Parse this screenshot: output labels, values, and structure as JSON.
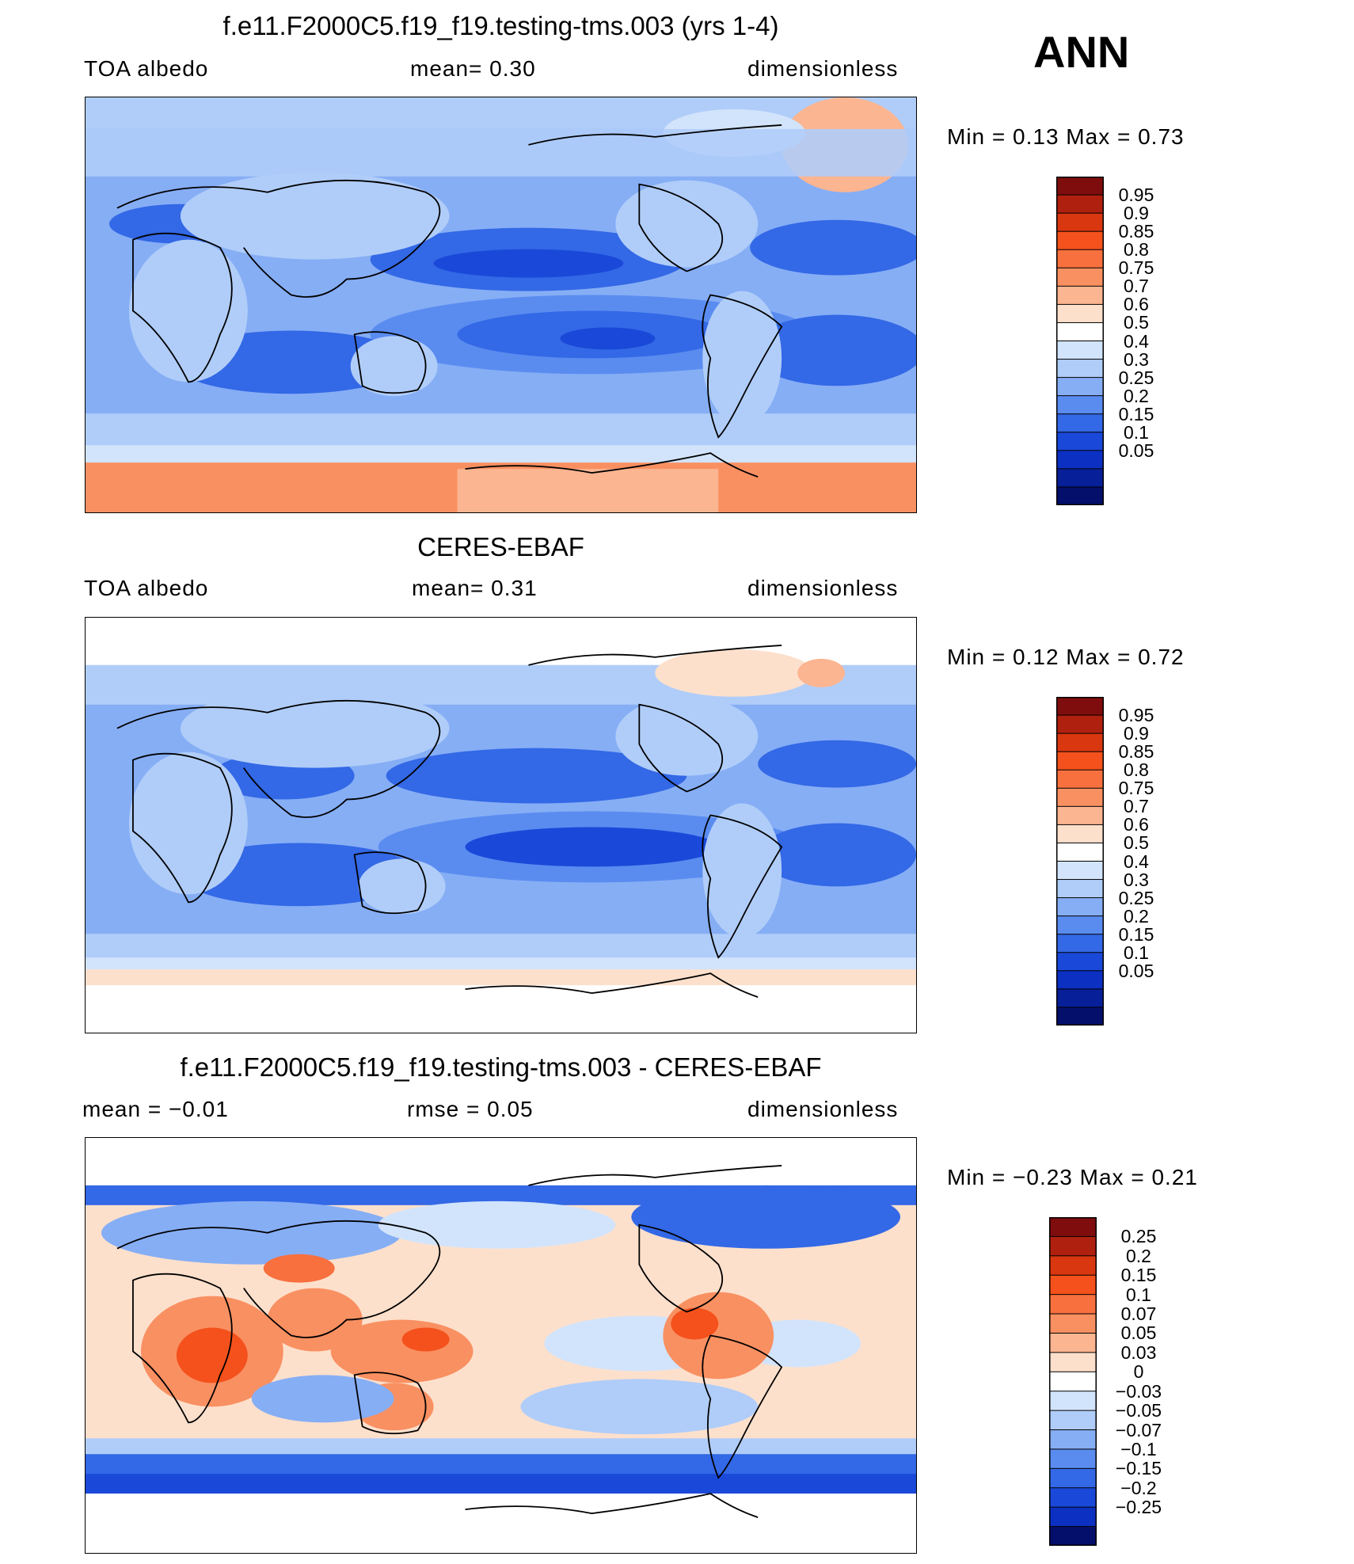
{
  "season": "ANN",
  "panels": [
    {
      "title": "f.e11.F2000C5.f19_f19.testing-tms.003 (yrs 1-4)",
      "left_label": "TOA  albedo",
      "center_label": "mean=     0.30",
      "right_label": "dimensionless",
      "minmax": "Min  =      0.13  Max  =      0.73",
      "colorbar": {
        "labels": [
          "0.95",
          "0.9",
          "0.85",
          "0.8",
          "0.75",
          "0.7",
          "0.6",
          "0.5",
          "0.4",
          "0.3",
          "0.25",
          "0.2",
          "0.15",
          "0.1",
          "0.05"
        ],
        "colors": [
          "#7f0d0d",
          "#b0200e",
          "#d9370f",
          "#f4511c",
          "#f8703e",
          "#f99062",
          "#fbb591",
          "#fde0cc",
          "#ffffff",
          "#d2e4fb",
          "#b0cdf9",
          "#86aef5",
          "#5a8cf0",
          "#3368e6",
          "#1a49d9",
          "#0b30c2",
          "#071f99",
          "#040f6b"
        ],
        "scheme": "abs"
      }
    },
    {
      "title": "CERES-EBAF",
      "left_label": "TOA  albedo",
      "center_label": "mean=     0.31",
      "right_label": "dimensionless",
      "minmax": "Min  =      0.12  Max  =      0.72",
      "colorbar": {
        "labels": [
          "0.95",
          "0.9",
          "0.85",
          "0.8",
          "0.75",
          "0.7",
          "0.6",
          "0.5",
          "0.4",
          "0.3",
          "0.25",
          "0.2",
          "0.15",
          "0.1",
          "0.05"
        ],
        "colors": [
          "#7f0d0d",
          "#b0200e",
          "#d9370f",
          "#f4511c",
          "#f8703e",
          "#f99062",
          "#fbb591",
          "#fde0cc",
          "#ffffff",
          "#d2e4fb",
          "#b0cdf9",
          "#86aef5",
          "#5a8cf0",
          "#3368e6",
          "#1a49d9",
          "#0b30c2",
          "#071f99",
          "#040f6b"
        ],
        "scheme": "abs"
      }
    },
    {
      "title": "f.e11.F2000C5.f19_f19.testing-tms.003 - CERES-EBAF",
      "left_label": "mean  =     −0.01",
      "center_label": "rmse  =      0.05",
      "right_label": "dimensionless",
      "minmax": "Min  =     −0.23  Max  =      0.21",
      "colorbar": {
        "labels": [
          "0.25",
          "0.2",
          "0.15",
          "0.1",
          "0.07",
          "0.05",
          "0.03",
          "0",
          "−0.03",
          "−0.05",
          "−0.07",
          "−0.1",
          "−0.15",
          "−0.2",
          "−0.25"
        ],
        "colors": [
          "#7f0d0d",
          "#b0200e",
          "#d9370f",
          "#f4511c",
          "#f8703e",
          "#f99062",
          "#fbb591",
          "#fde0cc",
          "#ffffff",
          "#d2e4fb",
          "#b0cdf9",
          "#86aef5",
          "#5a8cf0",
          "#3368e6",
          "#1a49d9",
          "#0b30c2",
          "#040f6b"
        ],
        "scheme": "diff"
      }
    }
  ]
}
